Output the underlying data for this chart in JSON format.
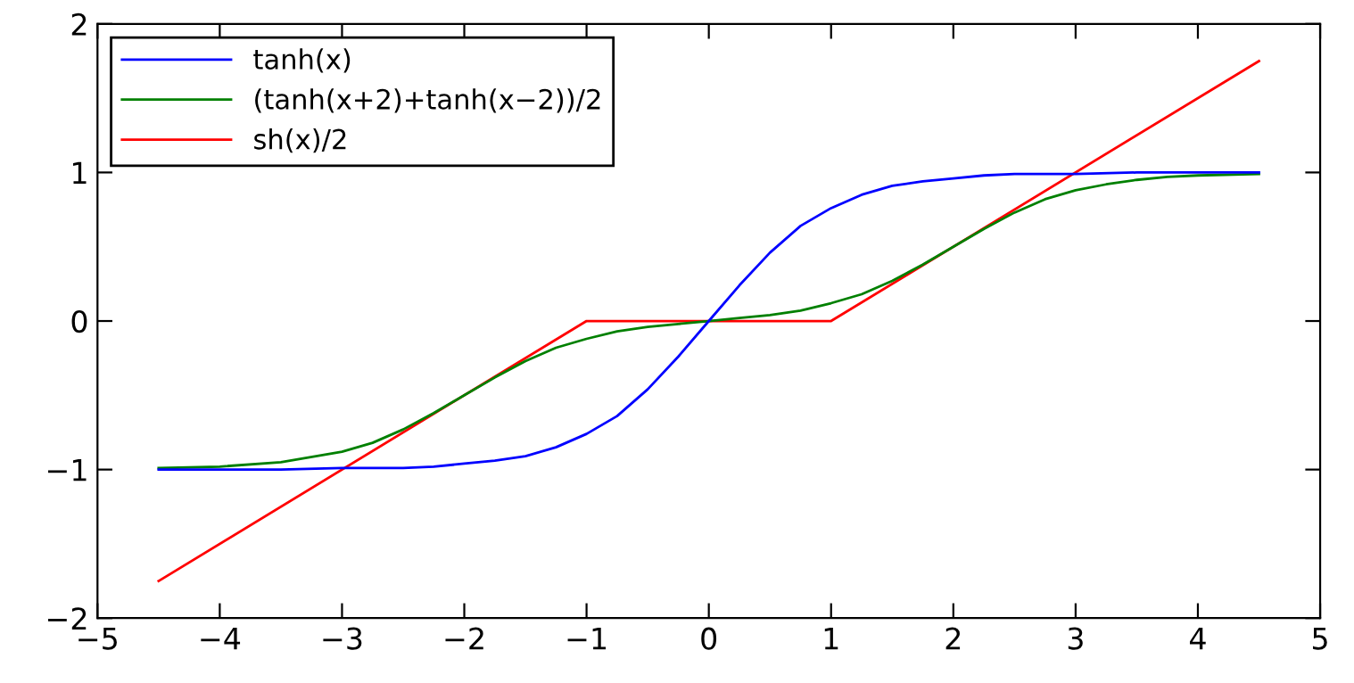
{
  "chart_data": {
    "type": "line",
    "x": [
      -4.5,
      -4,
      -3.5,
      -3,
      -2.75,
      -2.5,
      -2.25,
      -2,
      -1.75,
      -1.5,
      -1.25,
      -1,
      -0.75,
      -0.5,
      -0.25,
      0,
      0.25,
      0.5,
      0.75,
      1,
      1.25,
      1.5,
      1.75,
      2,
      2.25,
      2.5,
      2.75,
      3,
      3.5,
      4,
      4.5
    ],
    "series": [
      {
        "name": "tanh(x)",
        "color": "#0000ff",
        "values": [
          -1,
          -1,
          -1,
          -0.99,
          -0.99,
          -0.99,
          -0.98,
          -0.96,
          -0.94,
          -0.91,
          -0.85,
          -0.76,
          -0.64,
          -0.46,
          -0.24,
          0,
          0.24,
          0.46,
          0.64,
          0.76,
          0.85,
          0.91,
          0.94,
          0.96,
          0.98,
          0.99,
          0.99,
          0.99,
          1,
          1,
          1
        ]
      },
      {
        "name": "(tanh(x+2)+tanh(x−2))/2",
        "color": "#008000",
        "x": [
          -4.5,
          -4,
          -3.5,
          -3,
          -2.75,
          -2.5,
          -2.25,
          -2,
          -1.75,
          -1.5,
          -1.25,
          -1,
          -0.75,
          -0.5,
          -0.25,
          0,
          0.25,
          0.5,
          0.75,
          1,
          1.25,
          1.5,
          1.75,
          2,
          2.25,
          2.5,
          2.75,
          3,
          3.25,
          3.5,
          3.75,
          4,
          4.5
        ],
        "values": [
          -0.99,
          -0.98,
          -0.95,
          -0.88,
          -0.82,
          -0.73,
          -0.62,
          -0.5,
          -0.38,
          -0.27,
          -0.18,
          -0.12,
          -0.07,
          -0.04,
          -0.02,
          0,
          0.02,
          0.04,
          0.07,
          0.12,
          0.18,
          0.27,
          0.38,
          0.5,
          0.62,
          0.73,
          0.82,
          0.88,
          0.92,
          0.95,
          0.97,
          0.98,
          0.99
        ]
      },
      {
        "name": "sh(x)/2",
        "color": "#ff0000",
        "x": [
          -4.5,
          -1,
          1,
          4.5
        ],
        "values": [
          -1.75,
          0,
          0,
          1.75
        ]
      }
    ],
    "xlim": [
      -5,
      5
    ],
    "ylim": [
      -2,
      2
    ],
    "xticks": [
      {
        "value": -5,
        "label": "−5"
      },
      {
        "value": -4,
        "label": "−4"
      },
      {
        "value": -3,
        "label": "−3"
      },
      {
        "value": -2,
        "label": "−2"
      },
      {
        "value": -1,
        "label": "−1"
      },
      0,
      1,
      2,
      3,
      4,
      5
    ],
    "yticks": [
      {
        "value": -2,
        "label": "−2"
      },
      {
        "value": -1,
        "label": "−1"
      },
      0,
      1,
      2
    ],
    "legend": "top left",
    "grid": false,
    "line_style": "solid",
    "marker": "none"
  }
}
